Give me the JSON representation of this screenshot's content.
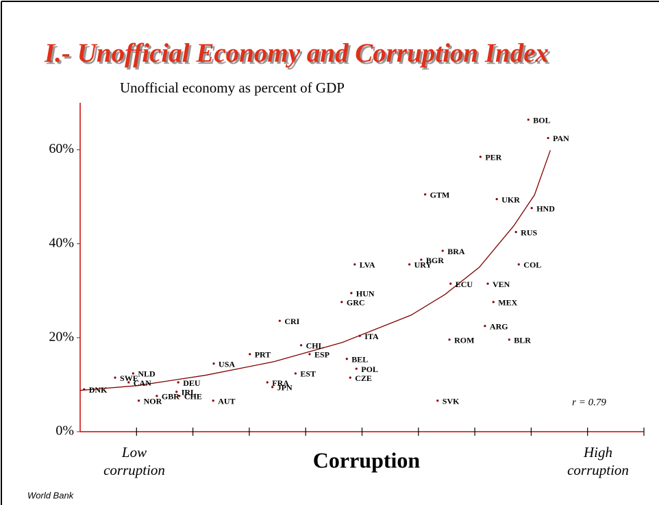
{
  "chart_data": {
    "type": "scatter",
    "title": "I.- Unofficial Economy and Corruption Index",
    "y_label": "Unofficial economy as percent of GDP",
    "x_label": "Corruption",
    "x_low_label": "Low corruption",
    "x_high_label": "High corruption",
    "annotation": "r = 0.79",
    "source": "World Bank",
    "color": "#8b0000",
    "xlim": [
      0,
      10
    ],
    "xticks": [
      1,
      2,
      3,
      4,
      5,
      6,
      7,
      8,
      9,
      10
    ],
    "ylim": [
      0,
      70
    ],
    "yticks": [
      {
        "value": 0,
        "label": "0%"
      },
      {
        "value": 20,
        "label": "20%"
      },
      {
        "value": 40,
        "label": "40%"
      },
      {
        "value": 60,
        "label": "60%"
      }
    ],
    "points": [
      {
        "label": "BOL",
        "x": 7.95,
        "y": 66.4
      },
      {
        "label": "PAN",
        "x": 8.3,
        "y": 62.5
      },
      {
        "label": "PER",
        "x": 7.1,
        "y": 58.5
      },
      {
        "label": "GTM",
        "x": 6.12,
        "y": 50.5
      },
      {
        "label": "UKR",
        "x": 7.39,
        "y": 49.5
      },
      {
        "label": "HND",
        "x": 8.01,
        "y": 47.6
      },
      {
        "label": "RUS",
        "x": 7.73,
        "y": 42.5
      },
      {
        "label": "BRA",
        "x": 6.43,
        "y": 38.5
      },
      {
        "label": "BGR",
        "x": 6.05,
        "y": 36.6
      },
      {
        "label": "URY",
        "x": 5.84,
        "y": 35.6
      },
      {
        "label": "LVA",
        "x": 4.87,
        "y": 35.6
      },
      {
        "label": "COL",
        "x": 7.78,
        "y": 35.6
      },
      {
        "label": "ECU",
        "x": 6.57,
        "y": 31.5
      },
      {
        "label": "VEN",
        "x": 7.23,
        "y": 31.5
      },
      {
        "label": "HUN",
        "x": 4.81,
        "y": 29.5
      },
      {
        "label": "GRC",
        "x": 4.64,
        "y": 27.6
      },
      {
        "label": "MEX",
        "x": 7.33,
        "y": 27.6
      },
      {
        "label": "CRI",
        "x": 3.54,
        "y": 23.6
      },
      {
        "label": "ARG",
        "x": 7.18,
        "y": 22.5
      },
      {
        "label": "ITA",
        "x": 4.96,
        "y": 20.4
      },
      {
        "label": "ROM",
        "x": 6.55,
        "y": 19.6
      },
      {
        "label": "BLR",
        "x": 7.61,
        "y": 19.6
      },
      {
        "label": "CHL",
        "x": 3.92,
        "y": 18.4
      },
      {
        "label": "PRT",
        "x": 3.01,
        "y": 16.5
      },
      {
        "label": "ESP",
        "x": 4.07,
        "y": 16.5
      },
      {
        "label": "BEL",
        "x": 4.73,
        "y": 15.5
      },
      {
        "label": "USA",
        "x": 2.37,
        "y": 14.5
      },
      {
        "label": "POL",
        "x": 4.9,
        "y": 13.4
      },
      {
        "label": "NLD",
        "x": 0.94,
        "y": 12.4
      },
      {
        "label": "EST",
        "x": 3.82,
        "y": 12.4
      },
      {
        "label": "SWE",
        "x": 0.62,
        "y": 11.5
      },
      {
        "label": "CZE",
        "x": 4.79,
        "y": 11.5
      },
      {
        "label": "CAN",
        "x": 0.86,
        "y": 10.5
      },
      {
        "label": "DEU",
        "x": 1.74,
        "y": 10.5
      },
      {
        "label": "FRA",
        "x": 3.32,
        "y": 10.5
      },
      {
        "label": "JPN",
        "x": 3.41,
        "y": 9.5
      },
      {
        "label": "DNK",
        "x": 0.07,
        "y": 9.0
      },
      {
        "label": "IRL",
        "x": 1.71,
        "y": 8.5
      },
      {
        "label": "GBR",
        "x": 1.36,
        "y": 7.6
      },
      {
        "label": "CHE",
        "x": 1.76,
        "y": 7.6
      },
      {
        "label": "NOR",
        "x": 1.04,
        "y": 6.6
      },
      {
        "label": "AUT",
        "x": 2.36,
        "y": 6.6
      },
      {
        "label": "SVK",
        "x": 6.34,
        "y": 6.6
      }
    ],
    "trend": {
      "color": "#800000",
      "x": [
        0,
        1.01,
        2.22,
        3.44,
        4.65,
        5.87,
        6.47,
        7.08,
        7.69,
        8.06,
        8.34
      ],
      "y": [
        8.8,
        9.8,
        12.0,
        14.9,
        19.0,
        24.8,
        29.2,
        35.0,
        43.8,
        50.4,
        59.9
      ]
    }
  }
}
